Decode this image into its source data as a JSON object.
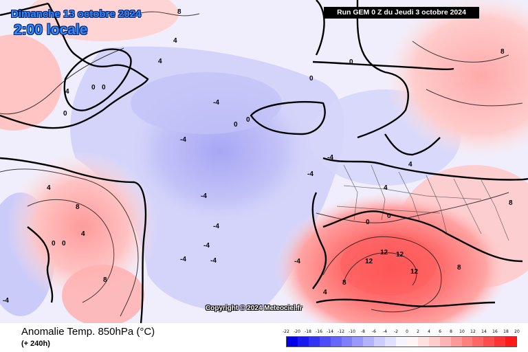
{
  "header": {
    "date": "Dimanche 13 octobre 2024",
    "time": "2:00 locale",
    "run": "Run GEM 0 Z du Jeudi 3 octobre 2024"
  },
  "copyright": "Copyright © 2024 Meteociel.fr",
  "footer": {
    "variable": "Anomalie Temp. 850hPa (°C)",
    "lead_time": "(+ 240h)"
  },
  "scale": {
    "labels": [
      "-22",
      "-20",
      "-18",
      "-16",
      "-14",
      "-12",
      "-10",
      "-8",
      "-6",
      "-4",
      "-2",
      "0",
      "2",
      "4",
      "6",
      "8",
      "10",
      "12",
      "14",
      "16",
      "18",
      "20"
    ],
    "colors": [
      "#0000e6",
      "#1a1af0",
      "#3333f5",
      "#4d4df8",
      "#6666fa",
      "#7f7ffb",
      "#9999fc",
      "#b3b3fd",
      "#ccccfe",
      "#e0e0ff",
      "#f5f5ff",
      "#fff5f5",
      "#ffe0e0",
      "#ffcccc",
      "#ffb3b3",
      "#ff9999",
      "#ff7f7f",
      "#ff6666",
      "#ff4d4d",
      "#ff3333",
      "#ff1a1a"
    ]
  },
  "map_labels": {
    "greenland_8": "8",
    "greenland_4a": "4",
    "greenland_4b": "4",
    "greenland_0a": "0",
    "greenland_0b": "0",
    "greenland_0c": "0",
    "greenland_4c": "4",
    "atl_m4a": "-4",
    "atl_m4b": "-4",
    "atl_0a": "0",
    "atl_0b": "0",
    "atl_m4c": "-4",
    "atl_m4d": "-4",
    "atl_m4e": "-4",
    "atl_m4f": "-4",
    "atl_m4g": "-4",
    "atl_m4h": "-4",
    "can_8a": "8",
    "can_4a": "4",
    "can_0a": "0",
    "can_0b": "0",
    "can_4b": "4",
    "can_8b": "8",
    "can_m4": "-4",
    "eur_0a": "0",
    "eur_0b": "0",
    "eur_m4a": "-4",
    "eur_m4b": "-4",
    "eur_4a": "4",
    "eur_4b": "4",
    "eur_0c": "0",
    "russia_8a": "8",
    "russia_8b": "8",
    "med_12a": "12",
    "med_12b": "12",
    "med_12c": "12",
    "med_12d": "12",
    "med_8a": "8",
    "med_8b": "8",
    "med_4": "4",
    "med_0": "0"
  }
}
